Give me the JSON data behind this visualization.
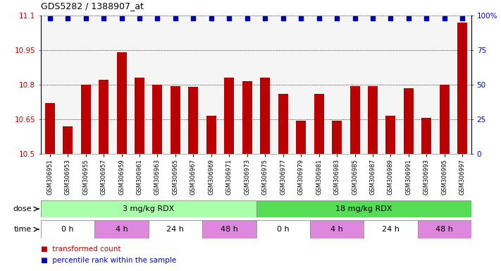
{
  "title": "GDS5282 / 1388907_at",
  "samples": [
    "GSM306951",
    "GSM306953",
    "GSM306955",
    "GSM306957",
    "GSM306959",
    "GSM306961",
    "GSM306963",
    "GSM306965",
    "GSM306967",
    "GSM306969",
    "GSM306971",
    "GSM306973",
    "GSM306975",
    "GSM306977",
    "GSM306979",
    "GSM306981",
    "GSM306983",
    "GSM306985",
    "GSM306987",
    "GSM306989",
    "GSM306991",
    "GSM306993",
    "GSM306995",
    "GSM306997"
  ],
  "bar_values": [
    10.72,
    10.62,
    10.8,
    10.82,
    10.94,
    10.83,
    10.8,
    10.795,
    10.79,
    10.665,
    10.83,
    10.815,
    10.83,
    10.76,
    10.645,
    10.76,
    10.645,
    10.795,
    10.795,
    10.665,
    10.785,
    10.655,
    10.8,
    11.07
  ],
  "percentile_values": [
    98,
    98,
    98,
    98,
    98,
    98,
    98,
    98,
    98,
    98,
    98,
    98,
    98,
    98,
    98,
    98,
    98,
    98,
    98,
    98,
    98,
    98,
    98,
    98
  ],
  "ymin": 10.5,
  "ymax": 11.1,
  "yticks": [
    10.5,
    10.65,
    10.8,
    10.95,
    11.1
  ],
  "y2ticks": [
    0,
    25,
    50,
    75,
    100
  ],
  "bar_color": "#bb0000",
  "percentile_color": "#0000bb",
  "dose_groups": [
    {
      "label": "3 mg/kg RDX",
      "start": 0,
      "end": 12,
      "color": "#aaffaa"
    },
    {
      "label": "18 mg/kg RDX",
      "start": 12,
      "end": 24,
      "color": "#55dd55"
    }
  ],
  "time_groups": [
    {
      "label": "0 h",
      "start": 0,
      "end": 3,
      "color": "#ffffff"
    },
    {
      "label": "4 h",
      "start": 3,
      "end": 6,
      "color": "#dd88dd"
    },
    {
      "label": "24 h",
      "start": 6,
      "end": 9,
      "color": "#ffffff"
    },
    {
      "label": "48 h",
      "start": 9,
      "end": 12,
      "color": "#dd88dd"
    },
    {
      "label": "0 h",
      "start": 12,
      "end": 15,
      "color": "#ffffff"
    },
    {
      "label": "4 h",
      "start": 15,
      "end": 18,
      "color": "#dd88dd"
    },
    {
      "label": "24 h",
      "start": 18,
      "end": 21,
      "color": "#ffffff"
    },
    {
      "label": "48 h",
      "start": 21,
      "end": 24,
      "color": "#dd88dd"
    }
  ],
  "dose_label": "dose",
  "time_label": "time",
  "legend_bar": "transformed count",
  "legend_pct": "percentile rank within the sample",
  "bg_color": "#ffffff"
}
